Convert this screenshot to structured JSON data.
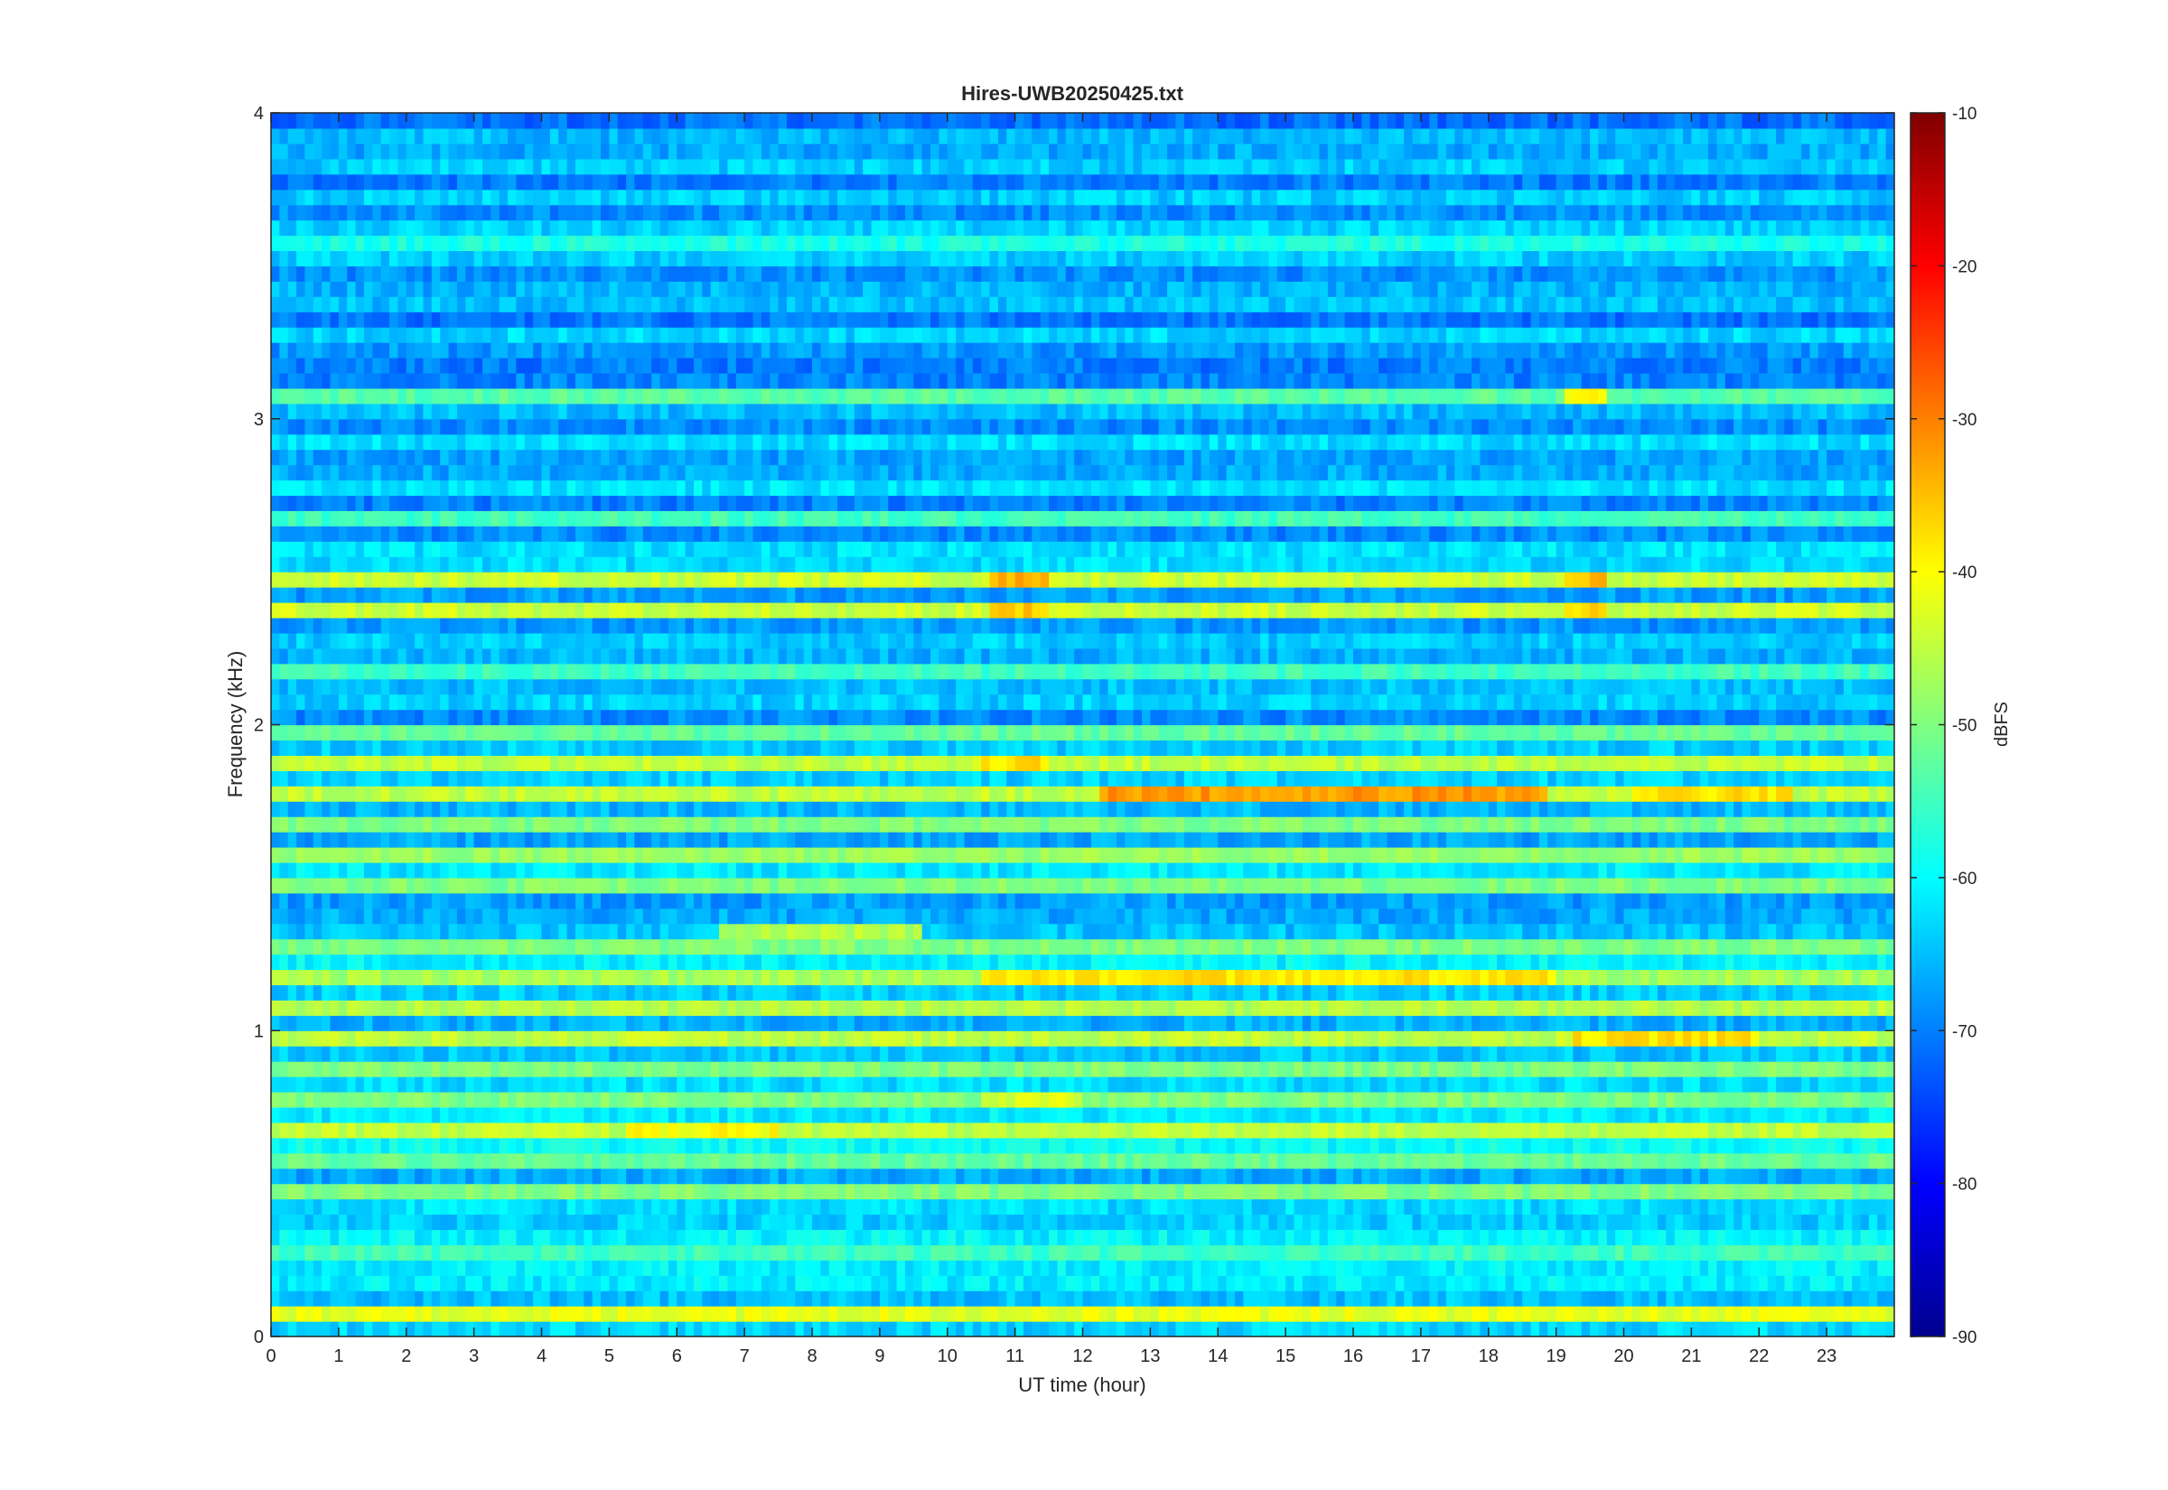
{
  "chart_data": {
    "type": "heatmap",
    "title": "Hires-UWB20250425.txt",
    "xlabel": "UT time (hour)",
    "ylabel": "Frequency (kHz)",
    "xlim": [
      0,
      24
    ],
    "ylim": [
      0,
      4
    ],
    "x_ticks": [
      "0",
      "1",
      "2",
      "3",
      "4",
      "5",
      "6",
      "7",
      "8",
      "9",
      "10",
      "11",
      "12",
      "13",
      "14",
      "15",
      "16",
      "17",
      "18",
      "19",
      "20",
      "21",
      "22",
      "23"
    ],
    "y_ticks": [
      "0",
      "1",
      "2",
      "3",
      "4"
    ],
    "colorbar": {
      "label": "dBFS",
      "range": [
        -90,
        -10
      ],
      "ticks": [
        "-10",
        "-20",
        "-30",
        "-40",
        "-50",
        "-60",
        "-70",
        "-80",
        "-90"
      ],
      "colormap": "jet"
    },
    "bands": [
      {
        "f": 0.05,
        "level": -42,
        "t0": 0,
        "t1": 24
      },
      {
        "f": 0.25,
        "level": -55,
        "t0": 0,
        "t1": 24
      },
      {
        "f": 0.45,
        "level": -50,
        "t0": 0,
        "t1": 24
      },
      {
        "f": 0.55,
        "level": -52,
        "t0": 0,
        "t1": 24
      },
      {
        "f": 0.65,
        "level": -45,
        "t0": 0,
        "t1": 24
      },
      {
        "f": 0.75,
        "level": -50,
        "t0": 0,
        "t1": 24
      },
      {
        "f": 0.85,
        "level": -50,
        "t0": 0,
        "t1": 24
      },
      {
        "f": 0.95,
        "level": -45,
        "t0": 0,
        "t1": 24
      },
      {
        "f": 1.05,
        "level": -46,
        "t0": 0,
        "t1": 24
      },
      {
        "f": 1.15,
        "level": -47,
        "t0": 0,
        "t1": 24
      },
      {
        "f": 1.25,
        "level": -50,
        "t0": 0,
        "t1": 24
      },
      {
        "f": 1.45,
        "level": -50,
        "t0": 0,
        "t1": 24
      },
      {
        "f": 1.55,
        "level": -48,
        "t0": 0,
        "t1": 24
      },
      {
        "f": 1.65,
        "level": -50,
        "t0": 0,
        "t1": 24
      },
      {
        "f": 1.75,
        "level": -45,
        "t0": 0,
        "t1": 24
      },
      {
        "f": 1.85,
        "level": -45,
        "t0": 0,
        "t1": 24
      },
      {
        "f": 1.95,
        "level": -52,
        "t0": 0,
        "t1": 24
      },
      {
        "f": 2.15,
        "level": -55,
        "t0": 0,
        "t1": 24
      },
      {
        "f": 2.35,
        "level": -44,
        "t0": 0,
        "t1": 24
      },
      {
        "f": 2.45,
        "level": -44,
        "t0": 0,
        "t1": 24
      },
      {
        "f": 2.65,
        "level": -55,
        "t0": 0,
        "t1": 24
      },
      {
        "f": 3.05,
        "level": -53,
        "t0": 0,
        "t1": 24
      },
      {
        "f": 3.55,
        "level": -58,
        "t0": 0,
        "t1": 24
      },
      {
        "f": 1.75,
        "level": -32,
        "t0": 12.2,
        "t1": 18.9
      },
      {
        "f": 1.15,
        "level": -38,
        "t0": 10.5,
        "t1": 19.0
      },
      {
        "f": 2.45,
        "level": -34,
        "t0": 10.6,
        "t1": 11.5
      },
      {
        "f": 2.35,
        "level": -36,
        "t0": 10.6,
        "t1": 11.5
      },
      {
        "f": 2.45,
        "level": -35,
        "t0": 19.1,
        "t1": 19.7
      },
      {
        "f": 2.35,
        "level": -37,
        "t0": 19.1,
        "t1": 19.7
      },
      {
        "f": 3.05,
        "level": -40,
        "t0": 19.1,
        "t1": 19.7
      },
      {
        "f": 0.95,
        "level": -38,
        "t0": 19.2,
        "t1": 22.0
      },
      {
        "f": 1.75,
        "level": -38,
        "t0": 20.1,
        "t1": 22.5
      },
      {
        "f": 1.85,
        "level": -38,
        "t0": 10.5,
        "t1": 11.5
      },
      {
        "f": 1.3,
        "level": -46,
        "t0": 6.6,
        "t1": 9.6
      },
      {
        "f": 0.75,
        "level": -43,
        "t0": 10.5,
        "t1": 12.0
      },
      {
        "f": 0.65,
        "level": -40,
        "t0": 5.3,
        "t1": 7.5
      }
    ]
  }
}
